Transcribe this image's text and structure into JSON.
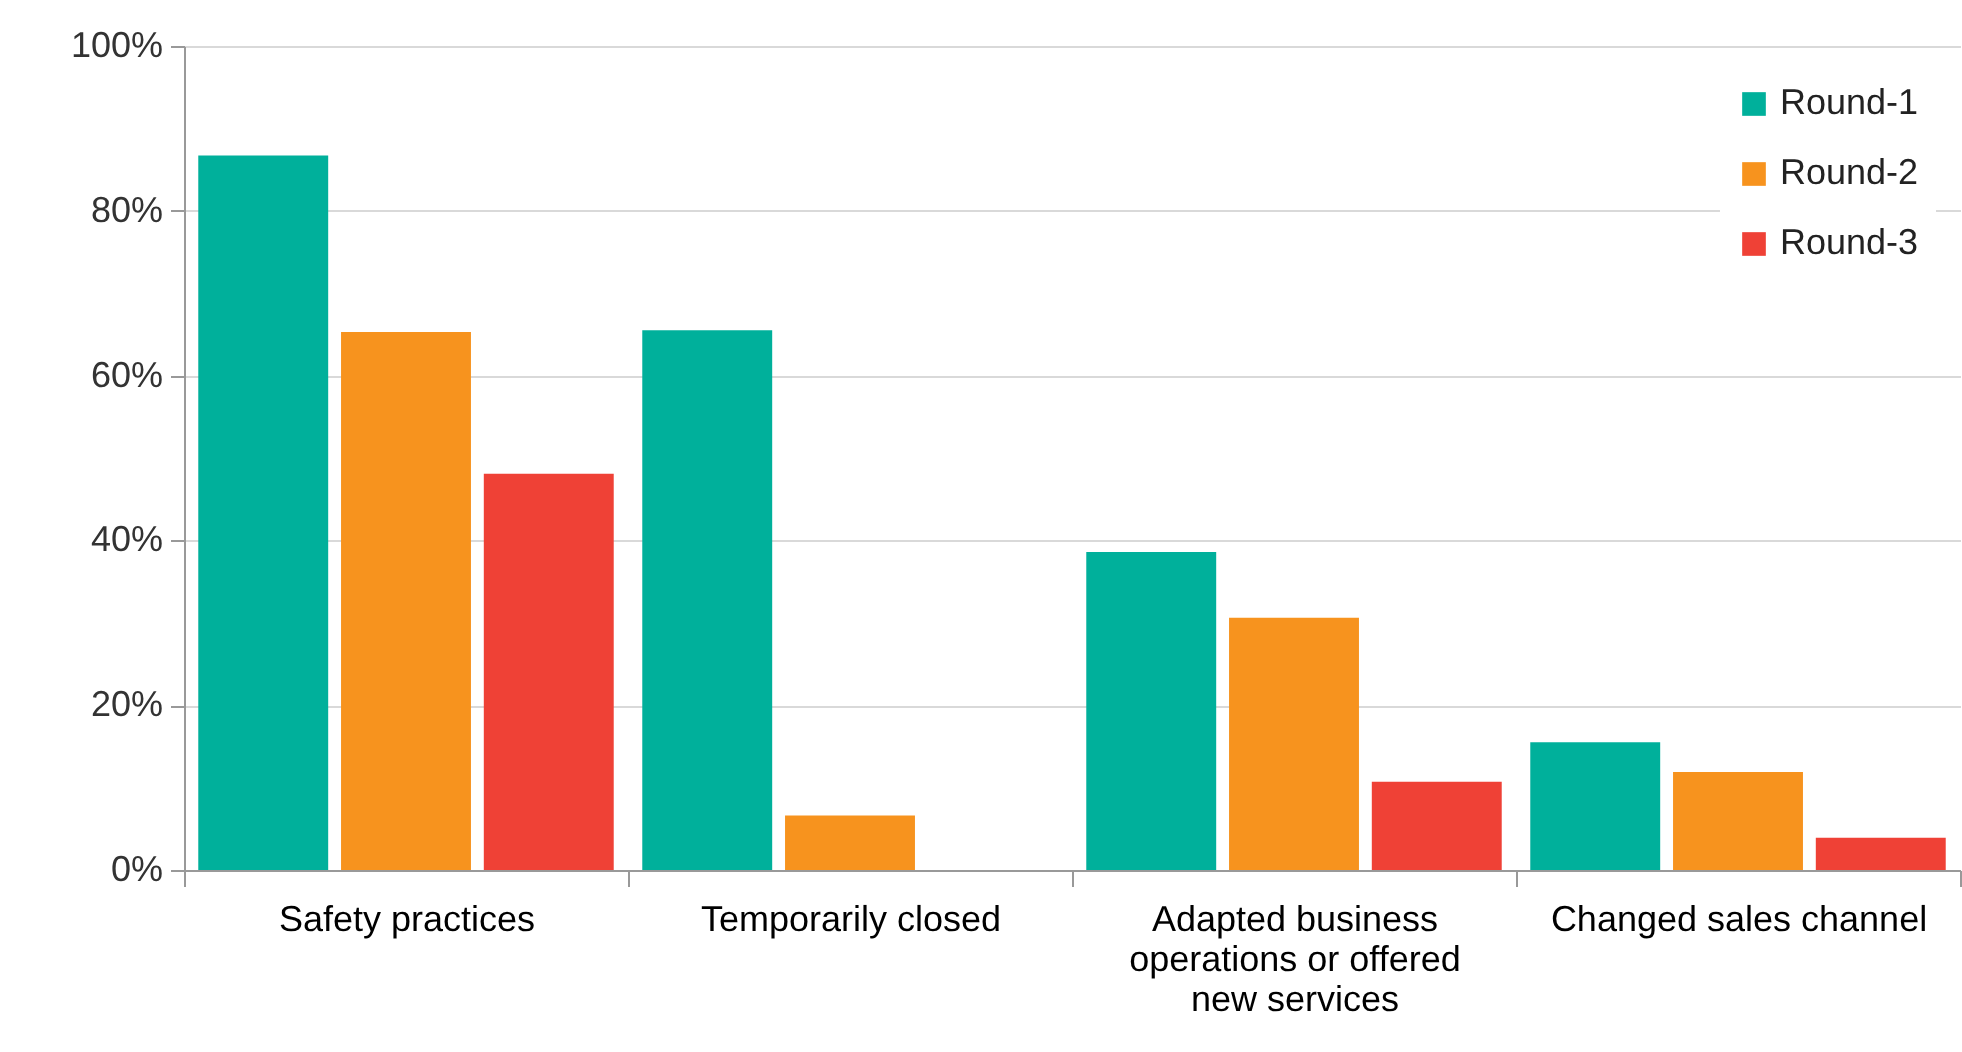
{
  "chart_data": {
    "type": "bar",
    "categories": [
      "Safety practices",
      "Temporarily closed",
      "Adapted business operations or offered new services",
      "Changed sales channel"
    ],
    "series": [
      {
        "name": "Round-1",
        "color": "#00b09b",
        "values": [
          86.7,
          65.5,
          38.6,
          15.5
        ]
      },
      {
        "name": "Round-2",
        "color": "#f7931e",
        "values": [
          65.3,
          6.6,
          30.6,
          11.9
        ]
      },
      {
        "name": "Round-3",
        "color": "#ef4136",
        "values": [
          48.1,
          null,
          10.7,
          3.9
        ]
      }
    ],
    "ylim": [
      0,
      100
    ],
    "yticks": [
      {
        "value": 0,
        "label": "0%"
      },
      {
        "value": 20,
        "label": "20%"
      },
      {
        "value": 40,
        "label": "40%"
      },
      {
        "value": 60,
        "label": "60%"
      },
      {
        "value": 80,
        "label": "80%"
      },
      {
        "value": 100,
        "label": "100%"
      }
    ],
    "grid": "y",
    "legend": "top right"
  }
}
